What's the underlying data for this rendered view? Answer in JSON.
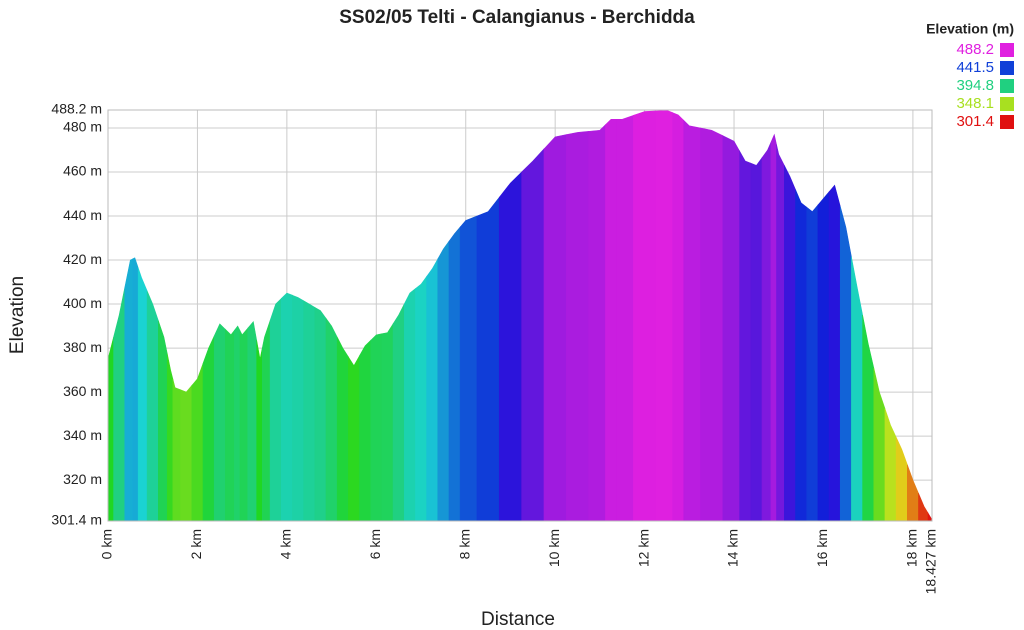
{
  "chart_data": {
    "type": "area",
    "title": "SS02/05 Telti - Calangianus - Berchidda",
    "x_label": "Distance",
    "y_label": "Elevation",
    "x": [
      0,
      0.25,
      0.5,
      0.6,
      0.75,
      1.0,
      1.25,
      1.4,
      1.5,
      1.75,
      2.0,
      2.25,
      2.5,
      2.75,
      2.9,
      3.0,
      3.25,
      3.4,
      3.5,
      3.75,
      4.0,
      4.25,
      4.5,
      4.75,
      5.0,
      5.25,
      5.5,
      5.75,
      6.0,
      6.25,
      6.5,
      6.75,
      7.0,
      7.25,
      7.5,
      7.75,
      8.0,
      8.5,
      9.0,
      9.5,
      10.0,
      10.5,
      11.0,
      11.25,
      11.5,
      12.0,
      12.5,
      12.75,
      13.0,
      13.5,
      14.0,
      14.25,
      14.5,
      14.75,
      14.9,
      15.0,
      15.25,
      15.5,
      15.75,
      16.0,
      16.25,
      16.5,
      16.75,
      17.0,
      17.25,
      17.5,
      17.75,
      18.0,
      18.25,
      18.427
    ],
    "values": [
      375,
      395,
      420,
      421,
      412,
      400,
      385,
      370,
      362,
      360,
      366,
      380,
      391,
      386,
      390,
      386,
      392,
      375,
      385,
      400,
      405,
      403,
      400,
      397,
      390,
      380,
      372,
      381,
      386,
      387,
      395,
      405,
      409,
      416,
      425,
      432,
      438,
      442,
      455,
      465,
      476,
      478,
      479,
      484,
      484,
      487.5,
      488,
      486,
      481,
      479,
      474,
      465,
      463,
      470,
      477,
      468,
      458,
      446,
      442,
      448,
      454,
      435,
      408,
      382,
      360,
      345,
      334,
      320,
      308,
      302
    ],
    "xlim": [
      0,
      18.427
    ],
    "ylim": [
      301.4,
      488.2
    ],
    "xticks": [
      {
        "value": 0,
        "label": "0 km"
      },
      {
        "value": 2,
        "label": "2 km"
      },
      {
        "value": 4,
        "label": "4 km"
      },
      {
        "value": 6,
        "label": "6 km"
      },
      {
        "value": 8,
        "label": "8 km"
      },
      {
        "value": 10,
        "label": "10 km"
      },
      {
        "value": 12,
        "label": "12 km"
      },
      {
        "value": 14,
        "label": "14 km"
      },
      {
        "value": 16,
        "label": "16 km"
      },
      {
        "value": 18,
        "label": "18 km"
      },
      {
        "value": 18.427,
        "label": "18.427 km"
      }
    ],
    "yticks": [
      {
        "value": 301.4,
        "label": "301.4 m"
      },
      {
        "value": 320,
        "label": "320 m"
      },
      {
        "value": 340,
        "label": "340 m"
      },
      {
        "value": 360,
        "label": "360 m"
      },
      {
        "value": 380,
        "label": "380 m"
      },
      {
        "value": 400,
        "label": "400 m"
      },
      {
        "value": 420,
        "label": "420 m"
      },
      {
        "value": 440,
        "label": "440 m"
      },
      {
        "value": 460,
        "label": "460 m"
      },
      {
        "value": 480,
        "label": "480 m"
      },
      {
        "value": 488.2,
        "label": "488.2 m"
      }
    ],
    "grid": true,
    "legend": {
      "title": "Elevation (m)",
      "position": "top-right"
    },
    "color_scale": [
      {
        "value": 488.2,
        "color": "#e020e0"
      },
      {
        "value": 441.5,
        "color": "#1040d8"
      },
      {
        "value": 394.8,
        "color": "#20d080"
      },
      {
        "value": 348.1,
        "color": "#a8e020"
      },
      {
        "value": 301.4,
        "color": "#e01010"
      }
    ]
  }
}
